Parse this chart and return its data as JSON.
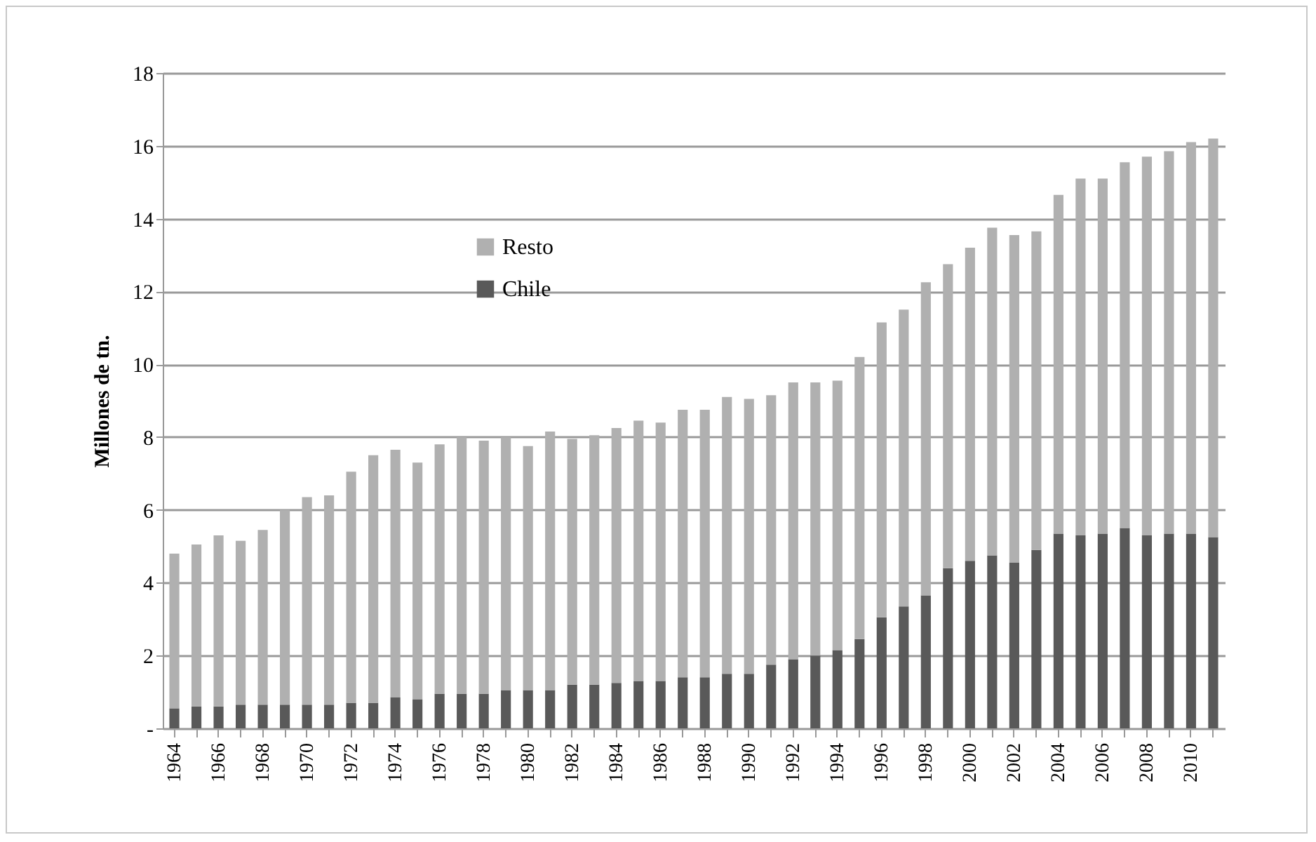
{
  "chart_data": {
    "type": "bar",
    "ylabel": "Millones de tn.",
    "stacked": true,
    "categories": [
      "1964",
      null,
      "1966",
      null,
      "1968",
      null,
      "1970",
      null,
      "1972",
      null,
      "1974",
      null,
      "1976",
      null,
      "1978",
      null,
      "1980",
      null,
      "1982",
      null,
      "1984",
      null,
      "1986",
      null,
      "1988",
      null,
      "1990",
      null,
      "1992",
      null,
      "1994",
      null,
      "1996",
      null,
      "1998",
      null,
      "2000",
      null,
      "2002",
      null,
      "2004",
      null,
      "2006",
      null,
      "2008",
      null,
      "2010",
      null
    ],
    "series": [
      {
        "name": "Chile",
        "color": "#595959",
        "values": [
          0.55,
          0.6,
          0.6,
          0.65,
          0.65,
          0.65,
          0.65,
          0.65,
          0.7,
          0.7,
          0.85,
          0.8,
          0.95,
          0.95,
          0.95,
          1.05,
          1.05,
          1.05,
          1.2,
          1.2,
          1.25,
          1.3,
          1.3,
          1.4,
          1.4,
          1.5,
          1.5,
          1.75,
          1.9,
          2.0,
          2.15,
          2.45,
          3.05,
          3.35,
          3.65,
          4.4,
          4.6,
          4.75,
          4.55,
          4.9,
          5.35,
          5.3,
          5.35,
          5.5,
          5.3,
          5.35,
          5.35,
          5.25
        ]
      },
      {
        "name": "Resto",
        "color": "#b0b0b0",
        "values": [
          4.25,
          4.45,
          4.7,
          4.5,
          4.8,
          5.35,
          5.7,
          5.75,
          6.35,
          6.8,
          6.8,
          6.5,
          6.85,
          7.05,
          6.95,
          6.95,
          6.7,
          7.1,
          6.75,
          6.85,
          7.0,
          7.15,
          7.1,
          7.35,
          7.35,
          7.6,
          7.55,
          7.4,
          7.6,
          7.5,
          7.4,
          7.75,
          8.1,
          8.15,
          8.6,
          8.35,
          8.6,
          9.0,
          9.0,
          8.75,
          9.3,
          9.8,
          9.75,
          10.05,
          10.4,
          10.5,
          10.75,
          10.95
        ]
      }
    ],
    "ylim": [
      0,
      18
    ],
    "yticks": [
      {
        "value": 0,
        "label": "-"
      },
      2,
      4,
      6,
      8,
      10,
      12,
      14,
      16,
      18
    ],
    "grid": "y",
    "legend": "top left"
  }
}
